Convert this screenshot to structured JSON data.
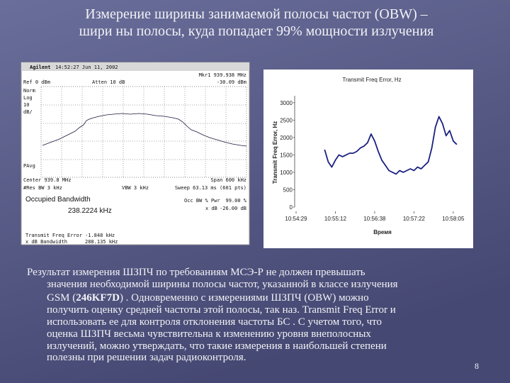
{
  "title": {
    "lines": [
      "Измерение ширины занимаемой полосы частот (OBW) –",
      "шири ны полосы, куда попадает 99% мощности излучения"
    ]
  },
  "analyzer": {
    "brand": "Agilent",
    "timestamp": "14:52:27  Jun 11, 2002",
    "marker": "Mkr1  939.938 MHz",
    "marker_level": "-30.09 dBm",
    "ref": "Ref 0 dBm",
    "atten": "Atten 10 dB",
    "side_labels": [
      "Norm",
      "Log",
      "10",
      "dB/"
    ],
    "pavg": "PAvg",
    "center": "Center 939.8 MHz",
    "span": "Span 600 kHz",
    "rbw": "#Res BW 3 kHz",
    "vbw": "VBW 3 kHz",
    "sweep": "Sweep 63.13 ms (601 pts)",
    "obw_title": "Occupied Bandwidth",
    "obw_value": "238.2224 kHz",
    "occ_label": "Occ BW % Pwr",
    "occ_value": "99.00 %",
    "xdb_label": "x dB",
    "xdb_value": "-26.00 dB",
    "tfe_label": "Transmit Freq Error",
    "tfe_value": "-1.848 kHz",
    "xbw_label": "x dB Bandwidth",
    "xbw_value": "288.135 kHz"
  },
  "chart_data": {
    "type": "line",
    "title": "Transmit Freq Error, Hz",
    "y_label": "Transmit Freq Error, Hz",
    "x_label": "Время",
    "x": [
      0,
      1,
      2,
      3,
      4,
      5,
      6,
      7,
      8,
      9,
      10,
      11,
      12,
      13,
      14,
      15,
      16,
      17,
      18,
      19,
      20,
      21,
      22,
      23,
      24,
      25,
      26,
      27,
      28,
      29,
      30,
      31,
      32,
      33,
      34,
      35,
      36,
      37
    ],
    "values": [
      1650,
      1300,
      1150,
      1350,
      1500,
      1450,
      1500,
      1550,
      1550,
      1600,
      1700,
      1750,
      1850,
      2100,
      1900,
      1600,
      1350,
      1200,
      1050,
      1000,
      950,
      1050,
      1000,
      1050,
      1100,
      1050,
      1150,
      1100,
      1200,
      1300,
      1700,
      2300,
      2600,
      2400,
      2050,
      2200,
      1900,
      1800
    ],
    "color": "#1a2080",
    "xlim": [
      -8,
      39
    ],
    "xticks": [
      {
        "value": -8,
        "label": "10:54:29"
      },
      {
        "value": 3,
        "label": "10:55:12"
      },
      {
        "value": 14,
        "label": "10:56:38"
      },
      {
        "value": 25,
        "label": "10:57:22"
      },
      {
        "value": 36,
        "label": "10:58:05"
      }
    ],
    "ylim": [
      0,
      3200
    ],
    "yticks": [
      0,
      500,
      1000,
      1500,
      2000,
      2500,
      3000
    ]
  },
  "body": {
    "lines": [
      "Результат измерения ШЗПЧ по требованиям МСЭ-Р не должен превышать",
      "значения необходимой ширины полосы частот, указанной в классе излучения",
      [
        "GSM (",
        "246KF7D",
        ")  . Одновременно с измерениями ШЗПЧ (OBW) можно"
      ],
      "получить оценку средней частоты этой полосы, так наз. Transmit Freq Error и",
      "использовать ее для контроля отклонения частоты БС . С учетом того, что",
      "оценка ШЗПЧ весьма чувствительна к изменению уровня внеполосных",
      "излучений, можно утверждать, что такие  измерения в наибольшей степени",
      "полезны при решении задач радиоконтроля."
    ]
  },
  "page_number": "8"
}
